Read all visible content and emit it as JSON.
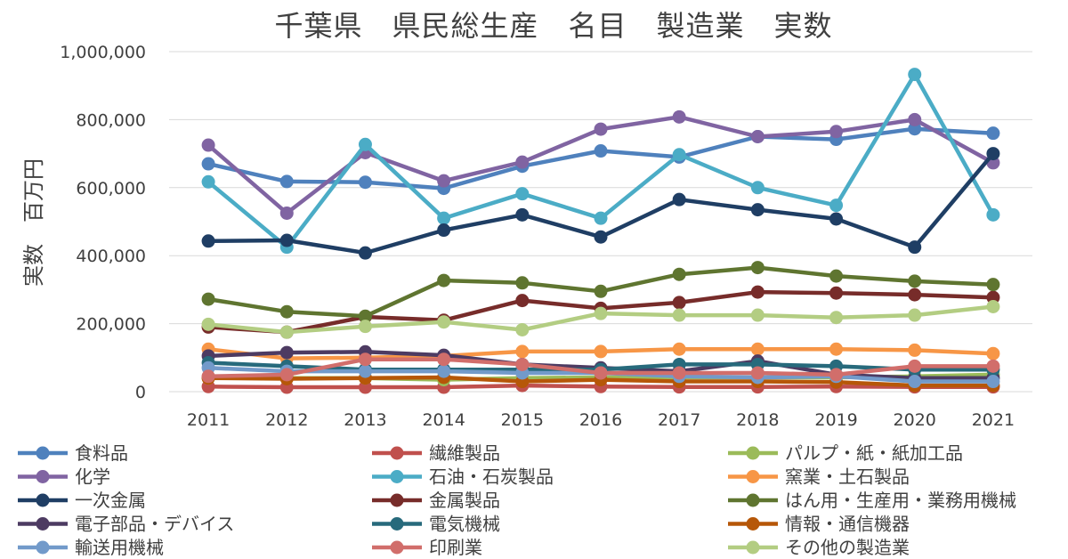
{
  "chart_data": {
    "type": "line",
    "title": "千葉県　県民総生産　名目　製造業　実数",
    "xlabel": "",
    "ylabel": "実数　百万円",
    "categories": [
      "2011",
      "2012",
      "2013",
      "2014",
      "2015",
      "2016",
      "2017",
      "2018",
      "2019",
      "2020",
      "2021"
    ],
    "ylim": [
      0,
      1000000
    ],
    "yticks": [
      0,
      200000,
      400000,
      600000,
      800000,
      1000000
    ],
    "ytick_labels": [
      "0",
      "200,000",
      "400,000",
      "600,000",
      "800,000",
      "1,000,000"
    ],
    "grid": true,
    "legend_position": "bottom",
    "series": [
      {
        "name": "食料品",
        "color": "#4f81bd",
        "values": [
          670000,
          618000,
          616000,
          598000,
          663000,
          708000,
          690000,
          750000,
          742000,
          773000,
          760000
        ]
      },
      {
        "name": "繊維製品",
        "color": "#c0504d",
        "values": [
          15000,
          13000,
          13000,
          13000,
          18000,
          15000,
          14000,
          14000,
          15000,
          14000,
          14000
        ]
      },
      {
        "name": "パルプ・紙・紙加工品",
        "color": "#9bbb59",
        "values": [
          40000,
          40000,
          40000,
          35000,
          40000,
          42000,
          42000,
          42000,
          42000,
          45000,
          50000
        ]
      },
      {
        "name": "化学",
        "color": "#8064a2",
        "values": [
          725000,
          525000,
          703000,
          620000,
          675000,
          772000,
          808000,
          750000,
          765000,
          800000,
          673000
        ]
      },
      {
        "name": "石油・石炭製品",
        "color": "#4bacc6",
        "values": [
          617000,
          425000,
          727000,
          510000,
          582000,
          510000,
          697000,
          600000,
          548000,
          933000,
          520000
        ]
      },
      {
        "name": "窯業・土石製品",
        "color": "#f79646",
        "values": [
          125000,
          98000,
          100000,
          105000,
          118000,
          118000,
          125000,
          125000,
          125000,
          122000,
          112000
        ]
      },
      {
        "name": "一次金属",
        "color": "#1f3e64",
        "values": [
          443000,
          445000,
          408000,
          475000,
          520000,
          455000,
          565000,
          535000,
          508000,
          425000,
          700000
        ]
      },
      {
        "name": "金属製品",
        "color": "#772c2a",
        "values": [
          190000,
          175000,
          220000,
          210000,
          268000,
          245000,
          262000,
          293000,
          290000,
          285000,
          277000
        ]
      },
      {
        "name": "はん用・生産用・業務用機械",
        "color": "#5f7530",
        "values": [
          272000,
          235000,
          222000,
          327000,
          320000,
          295000,
          345000,
          365000,
          340000,
          325000,
          315000
        ]
      },
      {
        "name": "電子部品・デバイス",
        "color": "#4d3b62",
        "values": [
          105000,
          115000,
          117000,
          107000,
          80000,
          70000,
          60000,
          90000,
          50000,
          40000,
          40000
        ]
      },
      {
        "name": "電気機械",
        "color": "#276a7c",
        "values": [
          85000,
          75000,
          65000,
          65000,
          65000,
          65000,
          80000,
          80000,
          75000,
          65000,
          65000
        ]
      },
      {
        "name": "情報・通信機器",
        "color": "#b65708",
        "values": [
          40000,
          38000,
          40000,
          42000,
          30000,
          35000,
          30000,
          30000,
          28000,
          18000,
          18000
        ]
      },
      {
        "name": "輸送用機械",
        "color": "#729aca",
        "values": [
          70000,
          60000,
          60000,
          60000,
          55000,
          55000,
          45000,
          42000,
          45000,
          30000,
          30000
        ]
      },
      {
        "name": "印刷業",
        "color": "#d16e6b",
        "values": [
          45000,
          50000,
          95000,
          95000,
          80000,
          55000,
          55000,
          55000,
          50000,
          75000,
          75000
        ]
      },
      {
        "name": "その他の製造業",
        "color": "#b3cd82",
        "values": [
          198000,
          175000,
          192000,
          205000,
          182000,
          230000,
          225000,
          225000,
          218000,
          225000,
          250000
        ]
      }
    ]
  }
}
